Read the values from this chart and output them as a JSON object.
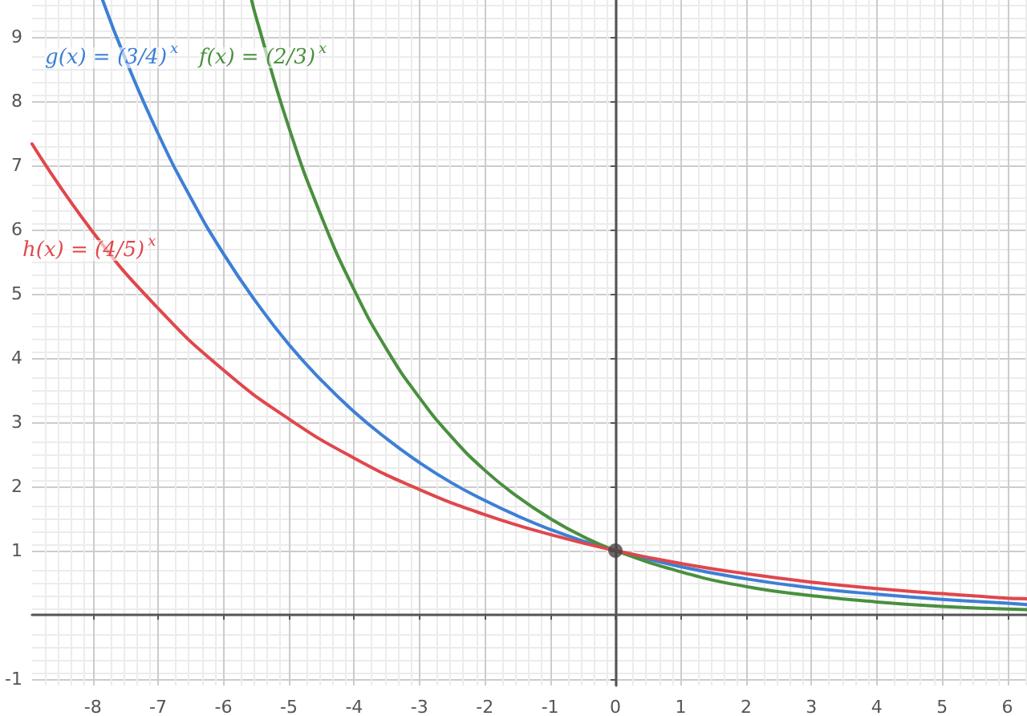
{
  "chart_data": {
    "type": "line",
    "xlim": [
      -8.93,
      6.3
    ],
    "ylim": [
      -1.1,
      9.57
    ],
    "xticks": [
      -8,
      -7,
      -6,
      -5,
      -4,
      -3,
      -2,
      -1,
      0,
      1,
      2,
      3,
      4,
      5,
      6
    ],
    "yticks": [
      -1,
      1,
      2,
      3,
      4,
      5,
      6,
      7,
      8,
      9
    ],
    "grid": true,
    "annotations": [
      "g(x) = (3/4)$^{x}$",
      "f(x) = (2/3)$^{x}$",
      "h(x) = (4/5)$^{x}$"
    ],
    "series": [
      {
        "color": "#3d7fd6",
        "x": [
          -7.85,
          -7.5,
          -7,
          -6.5,
          -6,
          -5.5,
          -5,
          -4.5,
          -4,
          -3.5,
          -3,
          -2.5,
          -2,
          -1.5,
          -1,
          -0.5,
          0,
          1,
          2,
          3,
          4,
          5,
          6,
          6.3
        ],
        "values": [
          9.57,
          8.65,
          7.49,
          6.49,
          5.62,
          4.87,
          4.21,
          3.65,
          3.16,
          2.74,
          2.37,
          2.05,
          1.78,
          1.54,
          1.33,
          1.15,
          1,
          0.75,
          0.56,
          0.42,
          0.32,
          0.24,
          0.18,
          0.16
        ]
      },
      {
        "color": "#4a8f3f",
        "x": [
          -5.57,
          -5.5,
          -5,
          -4.5,
          -4,
          -3.5,
          -3,
          -2.5,
          -2,
          -1.5,
          -1,
          -0.5,
          0,
          1,
          2,
          3,
          4,
          5,
          6,
          6.3
        ],
        "values": [
          9.57,
          9.3,
          7.59,
          6.2,
          5.06,
          4.13,
          3.38,
          2.76,
          2.25,
          1.84,
          1.5,
          1.22,
          1,
          0.67,
          0.44,
          0.3,
          0.2,
          0.13,
          0.09,
          0.08
        ]
      },
      {
        "color": "#e0474c",
        "x": [
          -8.93,
          -8,
          -7,
          -6,
          -5,
          -4,
          -3,
          -2,
          -1,
          0,
          1,
          2,
          3,
          4,
          5,
          6,
          6.3
        ],
        "values": [
          7.33,
          5.96,
          4.77,
          3.81,
          3.05,
          2.44,
          1.95,
          1.56,
          1.25,
          1,
          0.8,
          0.64,
          0.51,
          0.41,
          0.33,
          0.26,
          0.25
        ]
      },
      {
        "type": "scatter",
        "marker": "circle",
        "color": "#444444",
        "x": [
          0
        ],
        "values": [
          1
        ]
      }
    ]
  }
}
